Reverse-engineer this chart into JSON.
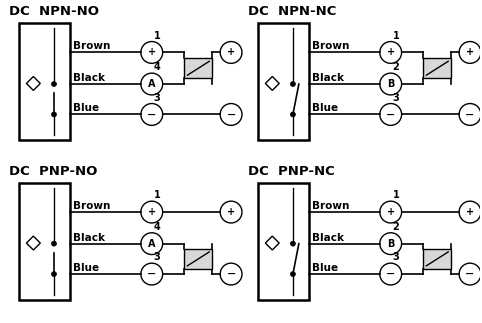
{
  "title_fontsize": 9.5,
  "label_fontsize": 7.5,
  "pin_fontsize": 7,
  "diagrams": [
    {
      "title": "DC  NPN-NO",
      "center_label": "A",
      "center_pin": "4",
      "load_top": true,
      "switch_closed": false
    },
    {
      "title": "DC  NPN-NC",
      "center_label": "B",
      "center_pin": "2",
      "load_top": true,
      "switch_closed": true
    },
    {
      "title": "DC  PNP-NO",
      "center_label": "A",
      "center_pin": "4",
      "load_top": false,
      "switch_closed": false
    },
    {
      "title": "DC  PNP-NC",
      "center_label": "B",
      "center_pin": "2",
      "load_top": false,
      "switch_closed": true
    }
  ],
  "bg_color": "#ffffff",
  "lw": 1.0,
  "circ_r": 0.018
}
